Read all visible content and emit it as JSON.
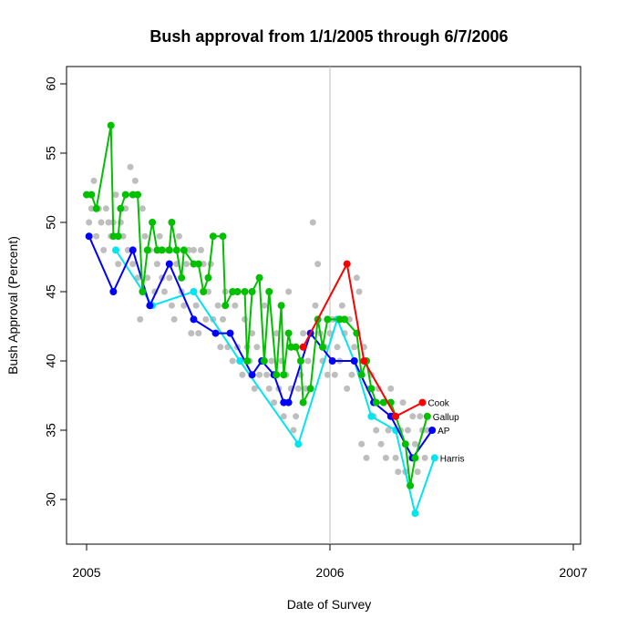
{
  "chart_data": {
    "type": "line",
    "title": "Bush approval from 1/1/2005 through 6/7/2006",
    "xlabel": "Date of Survey",
    "ylabel": "Bush Approval (Percent)",
    "xlim": [
      2005.0,
      2007.0
    ],
    "ylim": [
      30,
      60
    ],
    "x_ticks": [
      "2005",
      "2006",
      "2007"
    ],
    "y_ticks": [
      "30",
      "35",
      "40",
      "45",
      "50",
      "55",
      "60"
    ],
    "vline_x": 2006.0,
    "series": [
      {
        "name": "Gallup",
        "color": "#00c000",
        "points": [
          [
            2005.0,
            52
          ],
          [
            2005.02,
            52
          ],
          [
            2005.04,
            51
          ],
          [
            2005.1,
            57
          ],
          [
            2005.11,
            49
          ],
          [
            2005.13,
            49
          ],
          [
            2005.14,
            51
          ],
          [
            2005.16,
            52
          ],
          [
            2005.19,
            52
          ],
          [
            2005.21,
            52
          ],
          [
            2005.23,
            45
          ],
          [
            2005.25,
            48
          ],
          [
            2005.27,
            50
          ],
          [
            2005.29,
            48
          ],
          [
            2005.31,
            48
          ],
          [
            2005.34,
            48
          ],
          [
            2005.35,
            50
          ],
          [
            2005.37,
            48
          ],
          [
            2005.39,
            46
          ],
          [
            2005.4,
            48
          ],
          [
            2005.44,
            47
          ],
          [
            2005.46,
            47
          ],
          [
            2005.48,
            45
          ],
          [
            2005.5,
            46
          ],
          [
            2005.52,
            49
          ],
          [
            2005.56,
            49
          ],
          [
            2005.57,
            44
          ],
          [
            2005.6,
            45
          ],
          [
            2005.62,
            45
          ],
          [
            2005.65,
            45
          ],
          [
            2005.66,
            40
          ],
          [
            2005.68,
            45
          ],
          [
            2005.71,
            46
          ],
          [
            2005.73,
            40
          ],
          [
            2005.75,
            45
          ],
          [
            2005.78,
            39
          ],
          [
            2005.8,
            44
          ],
          [
            2005.81,
            39
          ],
          [
            2005.83,
            42
          ],
          [
            2005.84,
            41
          ],
          [
            2005.86,
            41
          ],
          [
            2005.88,
            40
          ],
          [
            2005.89,
            37
          ],
          [
            2005.92,
            38
          ],
          [
            2005.95,
            43
          ],
          [
            2005.97,
            41
          ],
          [
            2005.99,
            43
          ],
          [
            2006.04,
            43
          ],
          [
            2006.06,
            43
          ],
          [
            2006.11,
            42
          ],
          [
            2006.13,
            39
          ],
          [
            2006.15,
            40
          ],
          [
            2006.17,
            38
          ],
          [
            2006.19,
            37
          ],
          [
            2006.22,
            37
          ],
          [
            2006.25,
            37
          ],
          [
            2006.27,
            36
          ],
          [
            2006.31,
            34
          ],
          [
            2006.33,
            31
          ],
          [
            2006.35,
            33
          ],
          [
            2006.4,
            36
          ]
        ]
      },
      {
        "name": "AP",
        "color": "#0000ff",
        "points": [
          [
            2005.01,
            49
          ],
          [
            2005.11,
            45
          ],
          [
            2005.19,
            48
          ],
          [
            2005.26,
            44
          ],
          [
            2005.34,
            47
          ],
          [
            2005.44,
            43
          ],
          [
            2005.53,
            42
          ],
          [
            2005.59,
            42
          ],
          [
            2005.68,
            39
          ],
          [
            2005.72,
            40
          ],
          [
            2005.77,
            39
          ],
          [
            2005.81,
            37
          ],
          [
            2005.83,
            37
          ],
          [
            2005.92,
            42
          ],
          [
            2006.01,
            40
          ],
          [
            2006.1,
            40
          ],
          [
            2006.18,
            37
          ],
          [
            2006.25,
            36
          ],
          [
            2006.34,
            33
          ],
          [
            2006.42,
            35
          ]
        ]
      },
      {
        "name": "Harris",
        "color": "#00e5ee",
        "points": [
          [
            2005.12,
            48
          ],
          [
            2005.27,
            44
          ],
          [
            2005.44,
            45
          ],
          [
            2005.63,
            40
          ],
          [
            2005.87,
            34
          ],
          [
            2006.03,
            43
          ],
          [
            2006.1,
            40
          ],
          [
            2006.17,
            36
          ],
          [
            2006.27,
            35
          ],
          [
            2006.35,
            29
          ],
          [
            2006.43,
            33
          ]
        ]
      },
      {
        "name": "Cook",
        "color": "#ff0000",
        "points": [
          [
            2005.89,
            41
          ],
          [
            2006.07,
            47
          ],
          [
            2006.14,
            40
          ],
          [
            2006.27,
            36
          ],
          [
            2006.38,
            37
          ]
        ]
      }
    ],
    "background_points": [
      [
        2005.01,
        50
      ],
      [
        2005.02,
        51
      ],
      [
        2005.03,
        53
      ],
      [
        2005.04,
        49
      ],
      [
        2005.05,
        51
      ],
      [
        2005.06,
        50
      ],
      [
        2005.07,
        48
      ],
      [
        2005.08,
        51
      ],
      [
        2005.09,
        50
      ],
      [
        2005.1,
        49
      ],
      [
        2005.11,
        50
      ],
      [
        2005.12,
        52
      ],
      [
        2005.13,
        47
      ],
      [
        2005.14,
        50
      ],
      [
        2005.15,
        49
      ],
      [
        2005.16,
        51
      ],
      [
        2005.17,
        48
      ],
      [
        2005.18,
        54
      ],
      [
        2005.19,
        47
      ],
      [
        2005.2,
        53
      ],
      [
        2005.21,
        46
      ],
      [
        2005.22,
        43
      ],
      [
        2005.23,
        51
      ],
      [
        2005.24,
        49
      ],
      [
        2005.25,
        46
      ],
      [
        2005.26,
        48
      ],
      [
        2005.27,
        44
      ],
      [
        2005.28,
        45
      ],
      [
        2005.29,
        47
      ],
      [
        2005.3,
        49
      ],
      [
        2005.31,
        46
      ],
      [
        2005.32,
        45
      ],
      [
        2005.33,
        48
      ],
      [
        2005.34,
        46
      ],
      [
        2005.35,
        44
      ],
      [
        2005.36,
        43
      ],
      [
        2005.37,
        47
      ],
      [
        2005.38,
        49
      ],
      [
        2005.39,
        45
      ],
      [
        2005.4,
        44
      ],
      [
        2005.41,
        47
      ],
      [
        2005.42,
        48
      ],
      [
        2005.43,
        42
      ],
      [
        2005.44,
        48
      ],
      [
        2005.45,
        44
      ],
      [
        2005.46,
        42
      ],
      [
        2005.47,
        48
      ],
      [
        2005.48,
        47
      ],
      [
        2005.49,
        43
      ],
      [
        2005.5,
        45
      ],
      [
        2005.51,
        47
      ],
      [
        2005.52,
        43
      ],
      [
        2005.53,
        42
      ],
      [
        2005.54,
        44
      ],
      [
        2005.55,
        41
      ],
      [
        2005.56,
        43
      ],
      [
        2005.57,
        45
      ],
      [
        2005.58,
        41
      ],
      [
        2005.59,
        42
      ],
      [
        2005.6,
        40
      ],
      [
        2005.61,
        44
      ],
      [
        2005.62,
        41
      ],
      [
        2005.63,
        40
      ],
      [
        2005.64,
        39
      ],
      [
        2005.65,
        43
      ],
      [
        2005.66,
        41
      ],
      [
        2005.67,
        40
      ],
      [
        2005.68,
        42
      ],
      [
        2005.69,
        38
      ],
      [
        2005.7,
        41
      ],
      [
        2005.71,
        39
      ],
      [
        2005.72,
        40
      ],
      [
        2005.73,
        44
      ],
      [
        2005.74,
        39
      ],
      [
        2005.75,
        38
      ],
      [
        2005.76,
        40
      ],
      [
        2005.77,
        37
      ],
      [
        2005.78,
        42
      ],
      [
        2005.79,
        38
      ],
      [
        2005.8,
        40
      ],
      [
        2005.81,
        36
      ],
      [
        2005.82,
        39
      ],
      [
        2005.83,
        45
      ],
      [
        2005.84,
        38
      ],
      [
        2005.85,
        35
      ],
      [
        2005.86,
        36
      ],
      [
        2005.87,
        38
      ],
      [
        2005.88,
        39
      ],
      [
        2005.89,
        42
      ],
      [
        2005.9,
        38
      ],
      [
        2005.91,
        40
      ],
      [
        2005.92,
        42
      ],
      [
        2005.93,
        50
      ],
      [
        2005.94,
        44
      ],
      [
        2005.95,
        47
      ],
      [
        2005.96,
        42
      ],
      [
        2005.97,
        40
      ],
      [
        2005.98,
        41
      ],
      [
        2005.99,
        39
      ],
      [
        2006.0,
        42
      ],
      [
        2006.01,
        43
      ],
      [
        2006.02,
        39
      ],
      [
        2006.03,
        41
      ],
      [
        2006.04,
        40
      ],
      [
        2006.05,
        44
      ],
      [
        2006.06,
        42
      ],
      [
        2006.07,
        38
      ],
      [
        2006.08,
        43
      ],
      [
        2006.09,
        39
      ],
      [
        2006.1,
        41
      ],
      [
        2006.11,
        46
      ],
      [
        2006.12,
        45
      ],
      [
        2006.13,
        34
      ],
      [
        2006.14,
        41
      ],
      [
        2006.15,
        33
      ],
      [
        2006.16,
        38
      ],
      [
        2006.17,
        39
      ],
      [
        2006.18,
        36
      ],
      [
        2006.19,
        35
      ],
      [
        2006.2,
        38
      ],
      [
        2006.21,
        34
      ],
      [
        2006.22,
        37
      ],
      [
        2006.23,
        33
      ],
      [
        2006.24,
        35
      ],
      [
        2006.25,
        38
      ],
      [
        2006.26,
        36
      ],
      [
        2006.27,
        33
      ],
      [
        2006.28,
        32
      ],
      [
        2006.29,
        35
      ],
      [
        2006.3,
        37
      ],
      [
        2006.31,
        32
      ],
      [
        2006.32,
        35
      ],
      [
        2006.33,
        33
      ],
      [
        2006.34,
        36
      ],
      [
        2006.35,
        34
      ],
      [
        2006.36,
        32
      ],
      [
        2006.37,
        36
      ],
      [
        2006.38,
        35
      ],
      [
        2006.39,
        33
      ],
      [
        2006.4,
        35
      ]
    ]
  }
}
